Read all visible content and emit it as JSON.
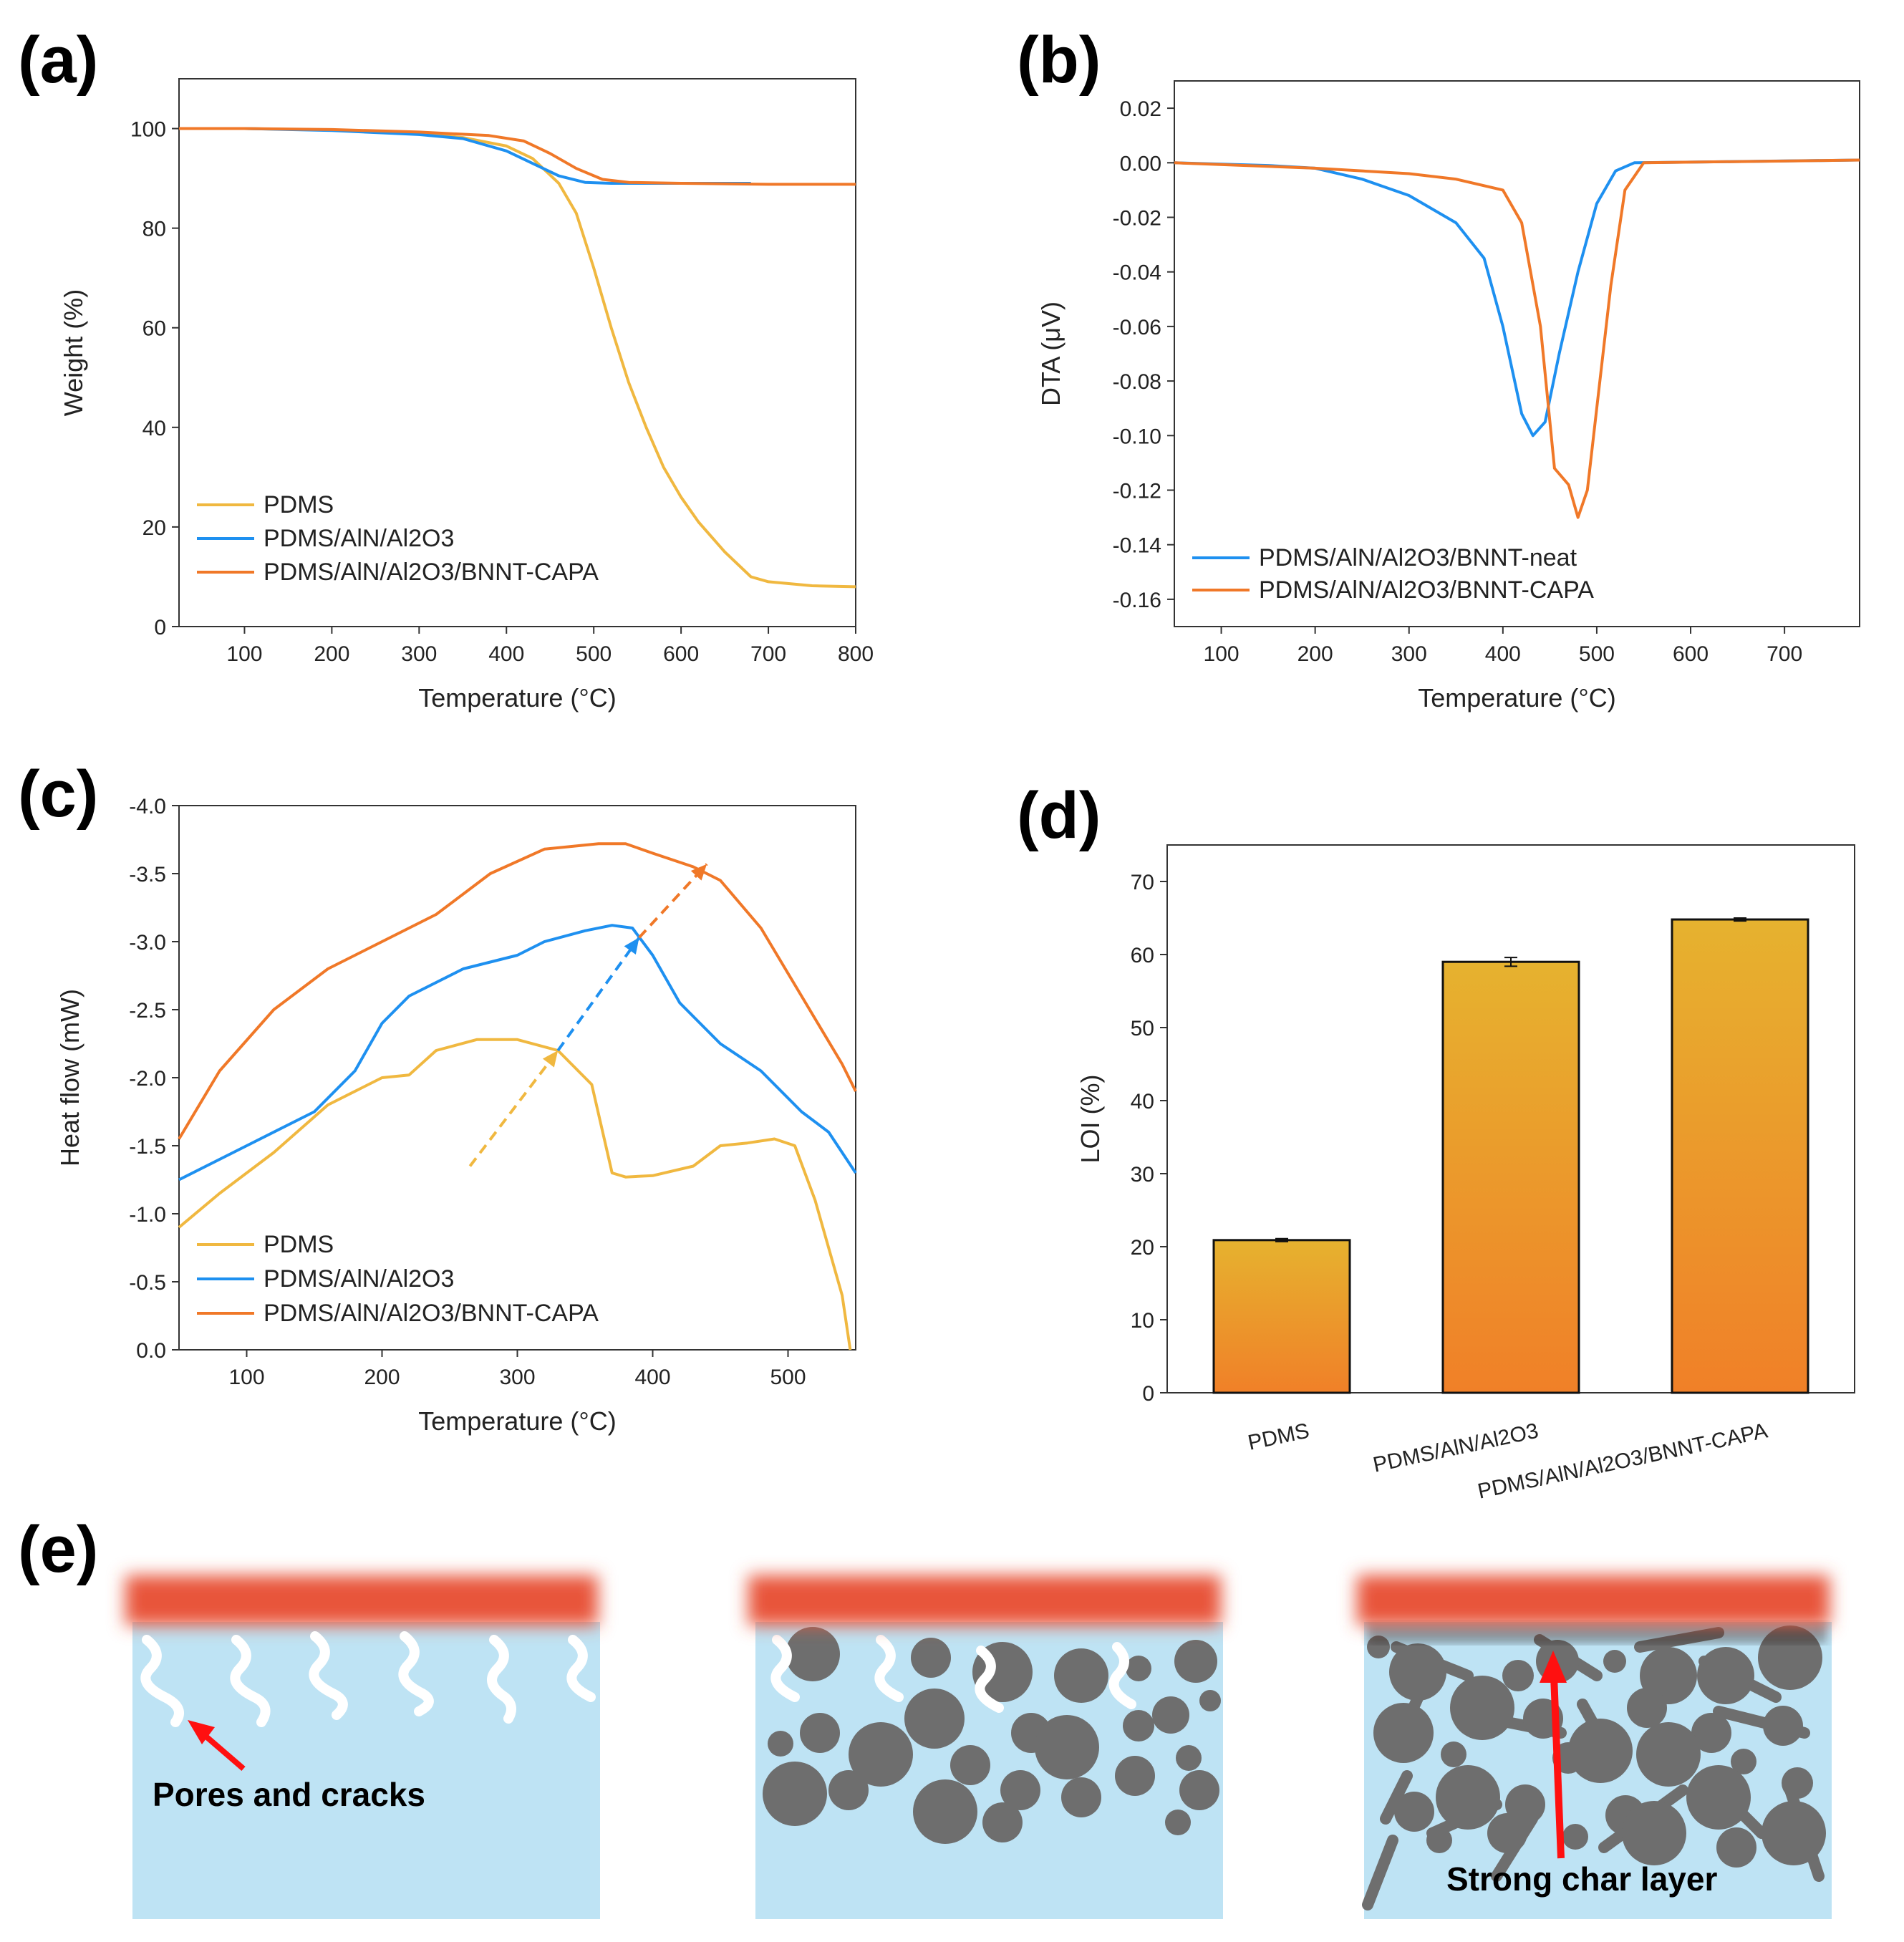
{
  "figure": {
    "panel_labels": [
      "(a)",
      "(b)",
      "(c)",
      "(d)",
      "(e)"
    ]
  },
  "colors": {
    "pdms": "#F0B840",
    "aln": "#1E90F0",
    "capa": "#F07828",
    "bar_top": "#E6B22F",
    "bar_bottom": "#F08028",
    "heat": "#E8553A",
    "matrix": "#BEE3F4",
    "particle": "#6E6E6E",
    "arrow": "#FF1010"
  },
  "chart_data": [
    {
      "id": "a",
      "type": "line",
      "xlabel": "Temperature (°C)",
      "ylabel": "Weight (%)",
      "xlim": [
        25,
        800
      ],
      "ylim": [
        0,
        110
      ],
      "xticks": [
        100,
        200,
        300,
        400,
        500,
        600,
        700,
        800
      ],
      "yticks": [
        0,
        20,
        40,
        60,
        80,
        100
      ],
      "legend_position": "lower-left",
      "series": [
        {
          "name": "PDMS",
          "color": "#F0B840",
          "points": [
            [
              25,
              100
            ],
            [
              100,
              100
            ],
            [
              200,
              99.7
            ],
            [
              300,
              99
            ],
            [
              350,
              98.2
            ],
            [
              400,
              96.5
            ],
            [
              430,
              94
            ],
            [
              460,
              89
            ],
            [
              480,
              83
            ],
            [
              500,
              72
            ],
            [
              520,
              60
            ],
            [
              540,
              49
            ],
            [
              560,
              40
            ],
            [
              580,
              32
            ],
            [
              600,
              26
            ],
            [
              620,
              21
            ],
            [
              650,
              15
            ],
            [
              680,
              10
            ],
            [
              700,
              9
            ],
            [
              750,
              8.2
            ],
            [
              800,
              8
            ]
          ]
        },
        {
          "name": "PDMS/AlN/Al2O3",
          "color": "#1E90F0",
          "points": [
            [
              25,
              100
            ],
            [
              100,
              100
            ],
            [
              200,
              99.6
            ],
            [
              300,
              98.8
            ],
            [
              350,
              98
            ],
            [
              400,
              95.5
            ],
            [
              430,
              93
            ],
            [
              460,
              90.5
            ],
            [
              490,
              89.2
            ],
            [
              520,
              89
            ],
            [
              600,
              89
            ],
            [
              680,
              89
            ]
          ]
        },
        {
          "name": "PDMS/AlN/Al2O3/BNNT-CAPA",
          "color": "#F07828",
          "points": [
            [
              25,
              100
            ],
            [
              100,
              100
            ],
            [
              200,
              99.8
            ],
            [
              300,
              99.3
            ],
            [
              380,
              98.6
            ],
            [
              420,
              97.5
            ],
            [
              450,
              95
            ],
            [
              480,
              92
            ],
            [
              510,
              89.8
            ],
            [
              540,
              89.2
            ],
            [
              600,
              89
            ],
            [
              700,
              88.8
            ],
            [
              800,
              88.8
            ]
          ]
        }
      ]
    },
    {
      "id": "b",
      "type": "line",
      "xlabel": "Temperature (°C)",
      "ylabel": "DTA (μV)",
      "xlim": [
        50,
        780
      ],
      "ylim": [
        -0.17,
        0.03
      ],
      "xticks": [
        100,
        200,
        300,
        400,
        500,
        600,
        700
      ],
      "yticks": [
        0.02,
        0.0,
        -0.02,
        -0.04,
        -0.06,
        -0.08,
        -0.1,
        -0.12,
        -0.14,
        -0.16
      ],
      "ytick_labels": [
        "0.02",
        "0.00",
        "-0.02",
        "-0.04",
        "-0.06",
        "-0.08",
        "-0.10",
        "-0.12",
        "-0.14",
        "-0.16"
      ],
      "legend_position": "lower-left",
      "series": [
        {
          "name": "PDMS/AlN/Al2O3/BNNT-neat",
          "color": "#1E90F0",
          "points": [
            [
              50,
              0
            ],
            [
              150,
              -0.001
            ],
            [
              200,
              -0.002
            ],
            [
              250,
              -0.006
            ],
            [
              300,
              -0.012
            ],
            [
              350,
              -0.022
            ],
            [
              380,
              -0.035
            ],
            [
              400,
              -0.06
            ],
            [
              420,
              -0.092
            ],
            [
              432,
              -0.1
            ],
            [
              445,
              -0.095
            ],
            [
              460,
              -0.07
            ],
            [
              480,
              -0.04
            ],
            [
              500,
              -0.015
            ],
            [
              520,
              -0.003
            ],
            [
              540,
              0
            ],
            [
              780,
              0.001
            ]
          ]
        },
        {
          "name": "PDMS/AlN/Al2O3/BNNT-CAPA",
          "color": "#F07828",
          "points": [
            [
              50,
              0
            ],
            [
              200,
              -0.002
            ],
            [
              300,
              -0.004
            ],
            [
              350,
              -0.006
            ],
            [
              400,
              -0.01
            ],
            [
              420,
              -0.022
            ],
            [
              440,
              -0.06
            ],
            [
              455,
              -0.112
            ],
            [
              470,
              -0.118
            ],
            [
              480,
              -0.13
            ],
            [
              490,
              -0.12
            ],
            [
              500,
              -0.09
            ],
            [
              515,
              -0.045
            ],
            [
              530,
              -0.01
            ],
            [
              550,
              0
            ],
            [
              780,
              0.001
            ]
          ]
        }
      ]
    },
    {
      "id": "c",
      "type": "line",
      "xlabel": "Temperature (°C)",
      "ylabel": "Heat flow (mW)",
      "xlim": [
        50,
        550
      ],
      "ylim": [
        0,
        -4.0
      ],
      "xticks": [
        100,
        200,
        300,
        400,
        500
      ],
      "yticks": [
        -4.0,
        -3.5,
        -3.0,
        -2.5,
        -2.0,
        -1.5,
        -1.0,
        -0.5,
        0.0
      ],
      "ytick_labels": [
        "-4.0",
        "-3.5",
        "-3.0",
        "-2.5",
        "-2.0",
        "-1.5",
        "-1.0",
        "-0.5",
        "0.0"
      ],
      "legend_position": "lower-left",
      "series": [
        {
          "name": "PDMS",
          "color": "#F0B840",
          "points": [
            [
              50,
              -0.9
            ],
            [
              80,
              -1.15
            ],
            [
              120,
              -1.45
            ],
            [
              160,
              -1.8
            ],
            [
              200,
              -2.0
            ],
            [
              220,
              -2.02
            ],
            [
              240,
              -2.2
            ],
            [
              270,
              -2.28
            ],
            [
              300,
              -2.28
            ],
            [
              330,
              -2.2
            ],
            [
              355,
              -1.95
            ],
            [
              370,
              -1.3
            ],
            [
              380,
              -1.27
            ],
            [
              400,
              -1.28
            ],
            [
              430,
              -1.35
            ],
            [
              450,
              -1.5
            ],
            [
              470,
              -1.52
            ],
            [
              490,
              -1.55
            ],
            [
              505,
              -1.5
            ],
            [
              520,
              -1.1
            ],
            [
              540,
              -0.4
            ],
            [
              546,
              0
            ]
          ]
        },
        {
          "name": "PDMS/AlN/Al2O3",
          "color": "#1E90F0",
          "points": [
            [
              50,
              -1.25
            ],
            [
              100,
              -1.5
            ],
            [
              150,
              -1.75
            ],
            [
              180,
              -2.05
            ],
            [
              200,
              -2.4
            ],
            [
              220,
              -2.6
            ],
            [
              260,
              -2.8
            ],
            [
              300,
              -2.9
            ],
            [
              320,
              -3.0
            ],
            [
              350,
              -3.08
            ],
            [
              370,
              -3.12
            ],
            [
              385,
              -3.1
            ],
            [
              400,
              -2.9
            ],
            [
              420,
              -2.55
            ],
            [
              450,
              -2.25
            ],
            [
              480,
              -2.05
            ],
            [
              510,
              -1.75
            ],
            [
              530,
              -1.6
            ],
            [
              550,
              -1.3
            ]
          ]
        },
        {
          "name": "PDMS/AlN/Al2O3/BNNT-CAPA",
          "color": "#F07828",
          "points": [
            [
              50,
              -1.55
            ],
            [
              80,
              -2.05
            ],
            [
              120,
              -2.5
            ],
            [
              160,
              -2.8
            ],
            [
              200,
              -3.0
            ],
            [
              240,
              -3.2
            ],
            [
              280,
              -3.5
            ],
            [
              320,
              -3.68
            ],
            [
              360,
              -3.72
            ],
            [
              380,
              -3.72
            ],
            [
              400,
              -3.65
            ],
            [
              430,
              -3.55
            ],
            [
              450,
              -3.45
            ],
            [
              480,
              -3.1
            ],
            [
              510,
              -2.6
            ],
            [
              540,
              -2.1
            ],
            [
              550,
              -1.9
            ]
          ]
        }
      ],
      "annotations": [
        {
          "type": "dashed-arrow",
          "color": "#F0B840",
          "from": [
            265,
            -1.35
          ],
          "to": [
            330,
            -2.2
          ]
        },
        {
          "type": "dashed-arrow",
          "color": "#1E90F0",
          "from": [
            330,
            -2.2
          ],
          "to": [
            390,
            -3.03
          ]
        },
        {
          "type": "dashed-arrow",
          "color": "#F07828",
          "from": [
            390,
            -3.03
          ],
          "to": [
            440,
            -3.57
          ]
        }
      ]
    },
    {
      "id": "d",
      "type": "bar",
      "xlabel": "",
      "ylabel": "LOI (%)",
      "ylim": [
        0,
        75
      ],
      "yticks": [
        0,
        10,
        20,
        30,
        40,
        50,
        60,
        70
      ],
      "categories": [
        "PDMS",
        "PDMS/AlN/Al2O3",
        "PDMS/AlN/Al2O3/BNNT-CAPA"
      ],
      "values": [
        20.9,
        59.0,
        64.8
      ],
      "errors": [
        0.2,
        0.6,
        0.2
      ]
    }
  ],
  "schematic": {
    "label_pores": "Pores and cracks",
    "label_char": "Strong char layer"
  }
}
